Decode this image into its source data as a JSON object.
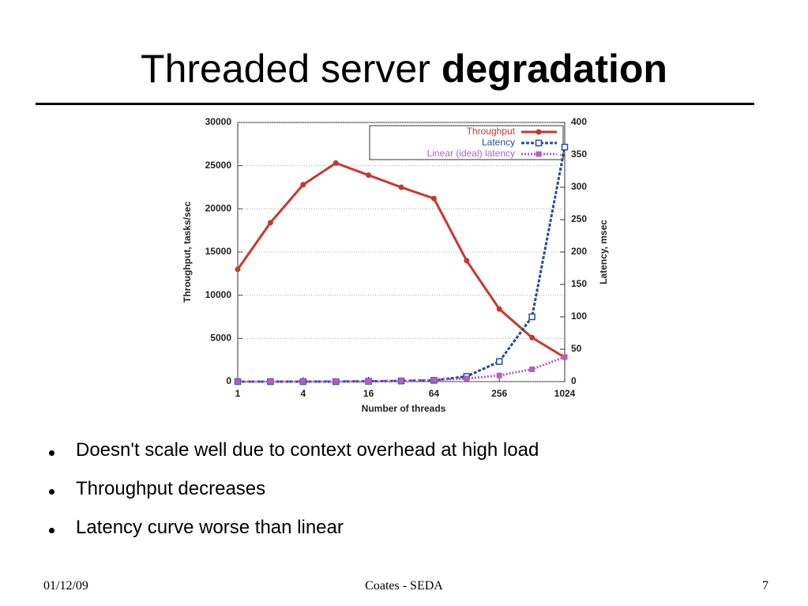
{
  "slide": {
    "title_prefix": "Threaded server",
    "title_emphasis": "degradation",
    "bullets": [
      "Doesn't scale well due to context overhead at high load",
      "Throughput decreases",
      "Latency curve worse than linear"
    ],
    "footer": {
      "date": "01/12/09",
      "center": "Coates - SEDA",
      "page": "7"
    }
  },
  "chart_data": {
    "type": "line",
    "x_label": "Number of threads",
    "y_label": "Throughput, tasks/sec",
    "y2_label": "Latency, msec",
    "x": [
      1,
      2,
      4,
      8,
      16,
      32,
      64,
      128,
      256,
      512,
      1024
    ],
    "xscale": "log",
    "xlim": [
      1,
      1024
    ],
    "xticks": [
      1,
      4,
      16,
      64,
      256,
      1024
    ],
    "ylim": [
      0,
      30000
    ],
    "yticks": [
      0,
      5000,
      10000,
      15000,
      20000,
      25000,
      30000
    ],
    "y2lim": [
      0,
      400
    ],
    "y2ticks": [
      0,
      50,
      100,
      150,
      200,
      250,
      300,
      350,
      400
    ],
    "grid": true,
    "legend": "upper right",
    "series": [
      {
        "name": "Throughput",
        "color": "#c8372d",
        "marker": "circle",
        "dash": "solid",
        "values": [
          13000,
          18400,
          22800,
          25300,
          23900,
          22500,
          21200,
          14000,
          8400,
          5100,
          2800
        ]
      },
      {
        "name": "Latency",
        "color": "#1f4e9c",
        "marker": "open-square",
        "dash": "dashed",
        "axis": "y2",
        "values": [
          0,
          0,
          0,
          0,
          0.5,
          1,
          2,
          8,
          31,
          100,
          362
        ]
      },
      {
        "name": "Linear (ideal) latency",
        "color": "#b35ec2",
        "marker": "square",
        "dash": "dotted",
        "axis": "y2",
        "values": [
          0.04,
          0.07,
          0.15,
          0.3,
          0.6,
          1.2,
          2.4,
          4.8,
          9.5,
          19,
          38
        ]
      }
    ]
  }
}
